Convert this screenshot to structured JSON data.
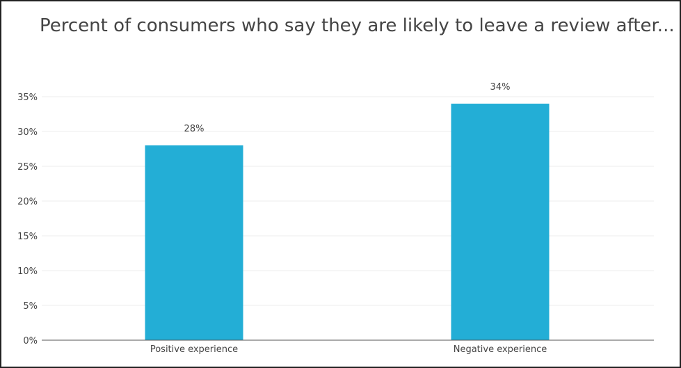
{
  "chart_data": {
    "type": "bar",
    "title": "Percent of consumers who say they are likely to leave a review after...",
    "categories": [
      "Positive experience",
      "Negative experience"
    ],
    "values": [
      28,
      34
    ],
    "data_labels": [
      "28%",
      "34%"
    ],
    "ylim": [
      0,
      35
    ],
    "yticks": [
      0,
      5,
      10,
      15,
      20,
      25,
      30,
      35
    ],
    "ytick_labels": [
      "0%",
      "5%",
      "10%",
      "15%",
      "20%",
      "25%",
      "30%",
      "35%"
    ],
    "xlabel": "",
    "ylabel": "",
    "grid": true,
    "legend": "none",
    "bar_color": "#23aed6"
  }
}
